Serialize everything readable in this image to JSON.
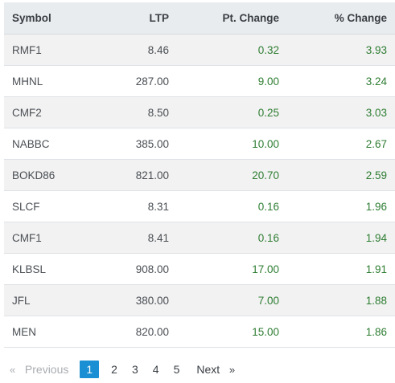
{
  "table": {
    "headers": {
      "symbol": "Symbol",
      "ltp": "LTP",
      "pt_change": "Pt. Change",
      "pct_change": "% Change"
    },
    "rows": [
      {
        "symbol": "RMF1",
        "ltp": "8.46",
        "pt_change": "0.32",
        "pct_change": "3.93"
      },
      {
        "symbol": "MHNL",
        "ltp": "287.00",
        "pt_change": "9.00",
        "pct_change": "3.24"
      },
      {
        "symbol": "CMF2",
        "ltp": "8.50",
        "pt_change": "0.25",
        "pct_change": "3.03"
      },
      {
        "symbol": "NABBC",
        "ltp": "385.00",
        "pt_change": "10.00",
        "pct_change": "2.67"
      },
      {
        "symbol": "BOKD86",
        "ltp": "821.00",
        "pt_change": "20.70",
        "pct_change": "2.59"
      },
      {
        "symbol": "SLCF",
        "ltp": "8.31",
        "pt_change": "0.16",
        "pct_change": "1.96"
      },
      {
        "symbol": "CMF1",
        "ltp": "8.41",
        "pt_change": "0.16",
        "pct_change": "1.94"
      },
      {
        "symbol": "KLBSL",
        "ltp": "908.00",
        "pt_change": "17.00",
        "pct_change": "1.91"
      },
      {
        "symbol": "JFL",
        "ltp": "380.00",
        "pt_change": "7.00",
        "pct_change": "1.88"
      },
      {
        "symbol": "MEN",
        "ltp": "820.00",
        "pt_change": "15.00",
        "pct_change": "1.86"
      }
    ]
  },
  "pagination": {
    "prev_arrow": "«",
    "prev_label": "Previous",
    "pages": [
      "1",
      "2",
      "3",
      "4",
      "5"
    ],
    "active_page": "1",
    "next_label": "Next",
    "next_arrow": "»"
  },
  "colors": {
    "positive": "#2e7d32",
    "active_page_bg": "#1b8fd4",
    "header_bg": "#e9ecef",
    "stripe_bg": "#f2f2f2"
  }
}
